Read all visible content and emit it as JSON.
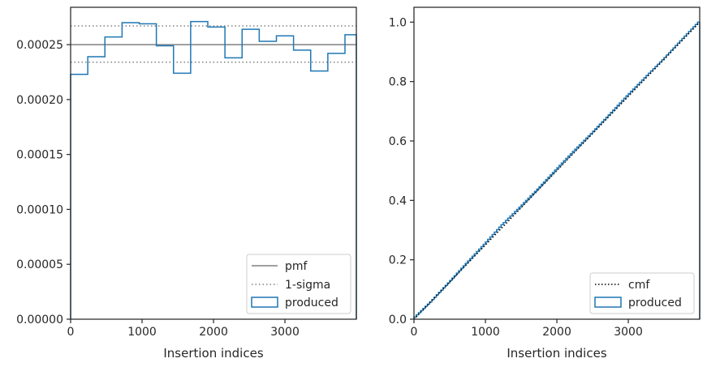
{
  "chart_data": [
    {
      "type": "histogram-step",
      "xlabel": "Insertion indices",
      "ylabel": "",
      "xlim": [
        0,
        3999
      ],
      "ylim": [
        0,
        0.000284
      ],
      "xticks": [
        0,
        1000,
        2000,
        3000
      ],
      "xtick_labels": [
        "0",
        "1000",
        "2000",
        "3000"
      ],
      "yticks": [
        0,
        5e-05,
        0.0001,
        0.00015,
        0.0002,
        0.00025
      ],
      "ytick_labels": [
        "0.00000",
        "0.00005",
        "0.00010",
        "0.00015",
        "0.00020",
        "0.00025"
      ],
      "series": [
        {
          "name": "produced",
          "kind": "step-histogram",
          "color": "#1f77b4",
          "bin_edges": [
            0,
            240,
            480,
            720,
            960,
            1200,
            1440,
            1680,
            1920,
            2160,
            2400,
            2640,
            2880,
            3120,
            3360,
            3600,
            3840,
            3999
          ],
          "values": [
            0.000223,
            0.000239,
            0.000257,
            0.00027,
            0.000269,
            0.000249,
            0.000224,
            0.000271,
            0.000266,
            0.000238,
            0.000264,
            0.000253,
            0.000258,
            0.000245,
            0.000226,
            0.000242,
            0.000259
          ]
        },
        {
          "name": "pmf",
          "kind": "hline",
          "color": "#808080",
          "y": 0.00025
        },
        {
          "name": "1-sigma",
          "kind": "hline-pair",
          "color": "#808080",
          "y": [
            0.000234,
            0.000267
          ]
        }
      ],
      "legend": {
        "position": "lower-right",
        "entries": [
          "pmf",
          "1-sigma",
          "produced"
        ]
      }
    },
    {
      "type": "line",
      "xlabel": "Insertion indices",
      "ylabel": "",
      "xlim": [
        0,
        3999
      ],
      "ylim": [
        0,
        1.05
      ],
      "xticks": [
        0,
        1000,
        2000,
        3000
      ],
      "xtick_labels": [
        "0",
        "1000",
        "2000",
        "3000"
      ],
      "yticks": [
        0,
        0.2,
        0.4,
        0.6,
        0.8,
        1.0
      ],
      "ytick_labels": [
        "0.0",
        "0.2",
        "0.4",
        "0.6",
        "0.8",
        "1.0"
      ],
      "series": [
        {
          "name": "produced",
          "kind": "step-cumulative",
          "color": "#1f77b4",
          "x": [
            0,
            250,
            500,
            750,
            1000,
            1250,
            1500,
            1750,
            2000,
            2250,
            2500,
            2750,
            3000,
            3250,
            3500,
            3750,
            3999
          ],
          "values": [
            0,
            0.058,
            0.122,
            0.188,
            0.252,
            0.318,
            0.377,
            0.438,
            0.502,
            0.565,
            0.625,
            0.688,
            0.752,
            0.813,
            0.873,
            0.937,
            1.0
          ]
        },
        {
          "name": "cmf",
          "kind": "dotted-line",
          "color": "#000000",
          "x": [
            0,
            3999
          ],
          "values": [
            0,
            1.0
          ]
        }
      ],
      "legend": {
        "position": "lower-right",
        "entries": [
          "cmf",
          "produced"
        ]
      }
    }
  ]
}
